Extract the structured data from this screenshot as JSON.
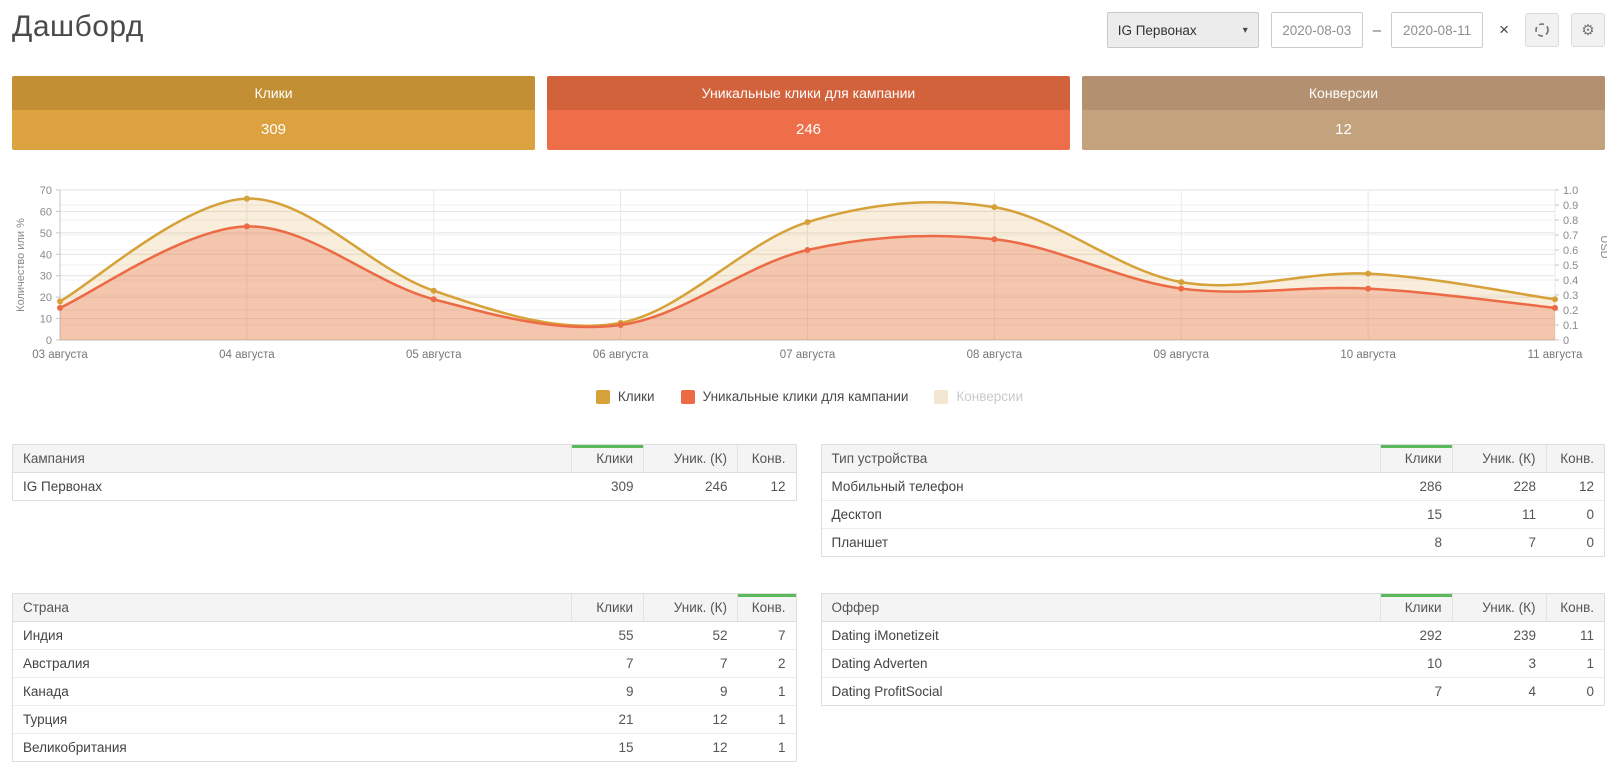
{
  "page": {
    "title": "Дашборд"
  },
  "header": {
    "campaign_select": {
      "value": "IG Первонах",
      "caret": "▾"
    },
    "date_from": "2020-08-03",
    "date_to": "2020-08-11",
    "date_separator": "–",
    "clear_label": "×",
    "refresh_icon": "refresh",
    "settings_icon": "gear",
    "settings_glyph": "⚙"
  },
  "cards": [
    {
      "label": "Клики",
      "value": "309",
      "header_color": "#c28f35",
      "body_color": "#dba23f"
    },
    {
      "label": "Уникальные клики для кампании",
      "value": "246",
      "header_color": "#d2623c",
      "body_color": "#ed6e48"
    },
    {
      "label": "Конверсии",
      "value": "12",
      "header_color": "#b29070",
      "body_color": "#c3a37d"
    }
  ],
  "chart_data": {
    "type": "area",
    "x": [
      "03 августа",
      "04 августа",
      "05 августа",
      "06 августа",
      "07 августа",
      "08 августа",
      "09 августа",
      "10 августа",
      "11 августа"
    ],
    "series": [
      {
        "name": "Клики",
        "color": "#d6a139",
        "fill_opacity": 0.18,
        "visible": true,
        "values": [
          18,
          66,
          23,
          8,
          55,
          62,
          27,
          31,
          19
        ]
      },
      {
        "name": "Уникальные клики для кампании",
        "color": "#ec6a45",
        "fill_opacity": 0.3,
        "visible": true,
        "values": [
          15,
          53,
          19,
          7,
          42,
          47,
          24,
          24,
          15
        ]
      },
      {
        "name": "Конверсии",
        "color": "#f3e6d1",
        "visible": false,
        "values": []
      }
    ],
    "ylabel_left": "Количество или %",
    "ylabel_right": "USD",
    "ylim_left": [
      0,
      70
    ],
    "yticks_left": [
      0,
      10,
      20,
      30,
      40,
      50,
      60,
      70
    ],
    "ylim_right": [
      0,
      1.0
    ],
    "yticks_right": [
      "0",
      "0.1",
      "0.2",
      "0.3",
      "0.4",
      "0.5",
      "0.6",
      "0.7",
      "0.8",
      "0.9",
      "1.0"
    ],
    "grid": true,
    "legend_position": "bottom"
  },
  "tables": [
    {
      "id": "campaign",
      "name_header": "Кампания",
      "columns": [
        "Клики",
        "Уник. (К)",
        "Конв."
      ],
      "sorted_column": "Клики",
      "rows": [
        {
          "name": "IG Первонах",
          "values": [
            "309",
            "246",
            "12"
          ]
        }
      ]
    },
    {
      "id": "device",
      "name_header": "Тип устройства",
      "columns": [
        "Клики",
        "Уник. (К)",
        "Конв."
      ],
      "sorted_column": "Клики",
      "rows": [
        {
          "name": "Мобильный телефон",
          "values": [
            "286",
            "228",
            "12"
          ]
        },
        {
          "name": "Десктоп",
          "values": [
            "15",
            "11",
            "0"
          ]
        },
        {
          "name": "Планшет",
          "values": [
            "8",
            "7",
            "0"
          ]
        }
      ]
    },
    {
      "id": "country",
      "name_header": "Страна",
      "columns": [
        "Клики",
        "Уник. (К)",
        "Конв."
      ],
      "sorted_column": "Конв.",
      "rows": [
        {
          "name": "Индия",
          "values": [
            "55",
            "52",
            "7"
          ]
        },
        {
          "name": "Австралия",
          "values": [
            "7",
            "7",
            "2"
          ]
        },
        {
          "name": "Канада",
          "values": [
            "9",
            "9",
            "1"
          ]
        },
        {
          "name": "Турция",
          "values": [
            "21",
            "12",
            "1"
          ]
        },
        {
          "name": "Великобритания",
          "values": [
            "15",
            "12",
            "1"
          ]
        }
      ]
    },
    {
      "id": "offer",
      "name_header": "Оффер",
      "columns": [
        "Клики",
        "Уник. (К)",
        "Конв."
      ],
      "sorted_column": "Клики",
      "rows": [
        {
          "name": "Dating iMonetizeit",
          "values": [
            "292",
            "239",
            "11"
          ]
        },
        {
          "name": "Dating Adverten",
          "values": [
            "10",
            "3",
            "1"
          ]
        },
        {
          "name": "Dating ProfitSocial",
          "values": [
            "7",
            "4",
            "0"
          ]
        }
      ]
    }
  ],
  "colors": {
    "accent_green": "#5cb85c",
    "grid_major": "#e2e2e2",
    "grid_minor": "#f1f1f1",
    "grid_vertical": "#e8e8e8",
    "axis": "#c5c5c5",
    "tick_text": "#8a8a8a",
    "date_text": "#777777",
    "legend_disabled_text": "#c9c9c9"
  }
}
